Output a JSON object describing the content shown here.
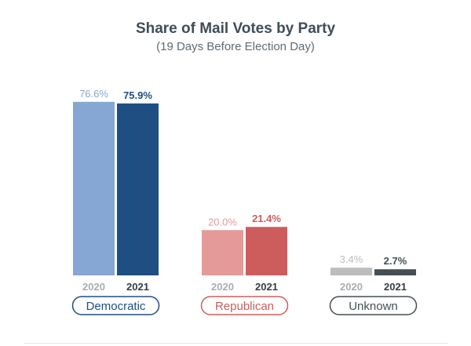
{
  "chart_data": {
    "type": "bar",
    "title": "Share of Mail Votes by Party",
    "subtitle": "(19 Days Before Election Day)",
    "ylim": [
      0,
      80
    ],
    "categories": [
      "Democratic",
      "Republican",
      "Unknown"
    ],
    "series": [
      {
        "name": "2020",
        "values": [
          76.6,
          20.0,
          3.4
        ],
        "labels": [
          "76.6%",
          "20.0%",
          "3.4%"
        ]
      },
      {
        "name": "2021",
        "values": [
          75.9,
          21.4,
          2.7
        ],
        "labels": [
          "75.9%",
          "21.4%",
          "2.7%"
        ]
      }
    ],
    "colors": {
      "Democratic": [
        "#86a6d3",
        "#1f4e82"
      ],
      "Republican": [
        "#e49a98",
        "#cd5d5c"
      ],
      "Unknown": [
        "#bcbcbc",
        "#444f55"
      ]
    },
    "year_label_colors": [
      "#a8adb2",
      "#333d44"
    ]
  }
}
